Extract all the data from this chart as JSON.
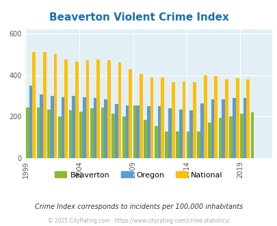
{
  "title": "Beaverton Violent Crime Index",
  "title_color": "#1a6faf",
  "years": [
    1999,
    2000,
    2001,
    2002,
    2003,
    2004,
    2005,
    2006,
    2007,
    2008,
    2009,
    2010,
    2011,
    2012,
    2013,
    2014,
    2015,
    2016,
    2017,
    2018,
    2019,
    2020,
    2021
  ],
  "beaverton": [
    245,
    245,
    235,
    200,
    230,
    225,
    240,
    245,
    215,
    200,
    255,
    185,
    155,
    130,
    130,
    130,
    130,
    170,
    195,
    200,
    215,
    220,
    0
  ],
  "oregon": [
    350,
    305,
    300,
    295,
    300,
    295,
    290,
    285,
    260,
    255,
    255,
    250,
    250,
    240,
    235,
    230,
    265,
    285,
    285,
    290,
    290,
    0,
    0
  ],
  "national": [
    510,
    510,
    500,
    475,
    465,
    470,
    475,
    470,
    460,
    430,
    405,
    390,
    390,
    365,
    370,
    365,
    400,
    395,
    380,
    385,
    380,
    0,
    0
  ],
  "beaverton_color": "#8db832",
  "oregon_color": "#5b9bd5",
  "national_color": "#ffc000",
  "plot_bg_color": "#e2eff5",
  "ylim": [
    0,
    620
  ],
  "yticks": [
    0,
    200,
    400,
    600
  ],
  "subtitle": "Crime Index corresponds to incidents per 100,000 inhabitants",
  "footer": "© 2025 CityRating.com - https://www.cityrating.com/crime-statistics/",
  "footer_color": "#aaaaaa",
  "subtitle_color": "#333333",
  "legend_labels": [
    "Beaverton",
    "Oregon",
    "National"
  ],
  "xtick_years": [
    1999,
    2004,
    2009,
    2014,
    2019
  ]
}
